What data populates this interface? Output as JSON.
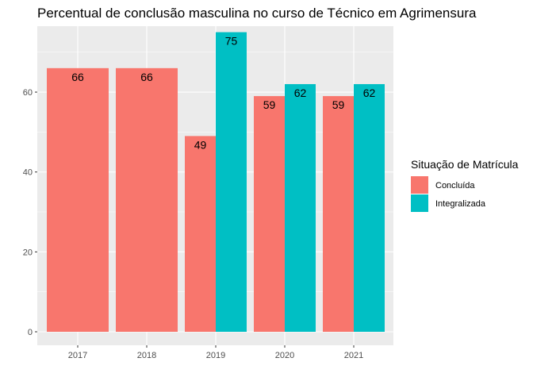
{
  "chart_data": {
    "type": "bar",
    "title": "Percentual de conclusão masculina no curso de Técnico em Agrimensura",
    "xlabel": "",
    "ylabel": "",
    "categories": [
      "2017",
      "2018",
      "2019",
      "2020",
      "2021"
    ],
    "ylim": [
      0,
      76.5
    ],
    "yticks": [
      0,
      20,
      40,
      60
    ],
    "grid": true,
    "legend": {
      "title": "Situação de Matrícula",
      "position": "right"
    },
    "series": [
      {
        "name": "Concluída",
        "color": "#F8766D",
        "values": [
          66,
          66,
          49,
          59,
          59
        ],
        "labels": [
          "66",
          "66",
          "49",
          "59",
          "59"
        ]
      },
      {
        "name": "Integralizada",
        "color": "#00BFC4",
        "values": [
          null,
          null,
          75,
          62,
          62
        ],
        "labels": [
          "",
          "",
          "75",
          "62",
          "62"
        ]
      }
    ]
  }
}
